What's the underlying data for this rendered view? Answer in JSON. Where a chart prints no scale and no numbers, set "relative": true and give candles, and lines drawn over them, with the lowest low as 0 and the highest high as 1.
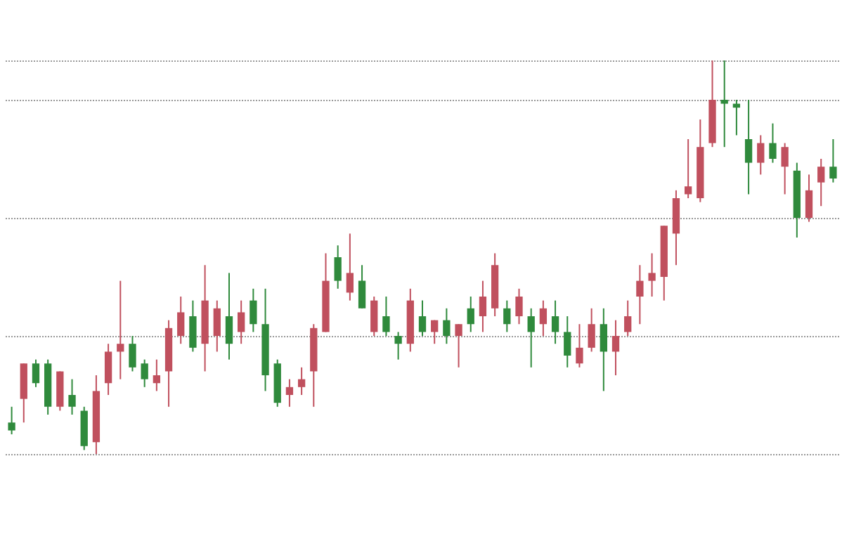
{
  "chart_data": {
    "type": "candlestick",
    "relative": true,
    "grid": "y",
    "categories": [
      null,
      null,
      null,
      null,
      null,
      null,
      null,
      null,
      null,
      null,
      null,
      null,
      null,
      null,
      null,
      null,
      null,
      null,
      null,
      null,
      null,
      null,
      null,
      null,
      null,
      null,
      null,
      null,
      null,
      null,
      null,
      null,
      null,
      null,
      null,
      null,
      null,
      null,
      null,
      null,
      null,
      null,
      null,
      null,
      null,
      null,
      null,
      null,
      null,
      null,
      null,
      null,
      null,
      null,
      null,
      null,
      null,
      null,
      null,
      null,
      null,
      null,
      null,
      null,
      null,
      null,
      null,
      null,
      null
    ],
    "ohlc": [
      [
        0.08,
        0.12,
        0.05,
        0.06
      ],
      [
        0.14,
        0.23,
        0.08,
        0.23
      ],
      [
        0.23,
        0.24,
        0.17,
        0.18
      ],
      [
        0.23,
        0.24,
        0.1,
        0.12
      ],
      [
        0.12,
        0.21,
        0.11,
        0.21
      ],
      [
        0.15,
        0.19,
        0.1,
        0.12
      ],
      [
        0.11,
        0.12,
        0.01,
        0.02
      ],
      [
        0.03,
        0.2,
        0,
        0.16
      ],
      [
        0.18,
        0.28,
        0.15,
        0.26
      ],
      [
        0.26,
        0.44,
        0.19,
        0.28
      ],
      [
        0.28,
        0.3,
        0.21,
        0.22
      ],
      [
        0.23,
        0.24,
        0.17,
        0.19
      ],
      [
        0.18,
        0.24,
        0.16,
        0.2
      ],
      [
        0.21,
        0.34,
        0.12,
        0.32
      ],
      [
        0.3,
        0.4,
        0.28,
        0.36
      ],
      [
        0.35,
        0.39,
        0.26,
        0.27
      ],
      [
        0.28,
        0.48,
        0.21,
        0.39
      ],
      [
        0.3,
        0.39,
        0.26,
        0.37
      ],
      [
        0.35,
        0.46,
        0.24,
        0.28
      ],
      [
        0.31,
        0.39,
        0.28,
        0.36
      ],
      [
        0.39,
        0.42,
        0.31,
        0.33
      ],
      [
        0.33,
        0.42,
        0.16,
        0.2
      ],
      [
        0.23,
        0.24,
        0.12,
        0.13
      ],
      [
        0.15,
        0.19,
        0.12,
        0.17
      ],
      [
        0.17,
        0.22,
        0.15,
        0.19
      ],
      [
        0.21,
        0.33,
        0.12,
        0.32
      ],
      [
        0.31,
        0.51,
        0.31,
        0.44
      ],
      [
        0.5,
        0.53,
        0.42,
        0.44
      ],
      [
        0.41,
        0.56,
        0.39,
        0.46
      ],
      [
        0.44,
        0.48,
        0.37,
        0.37
      ],
      [
        0.31,
        0.4,
        0.3,
        0.39
      ],
      [
        0.35,
        0.4,
        0.3,
        0.31
      ],
      [
        0.3,
        0.31,
        0.24,
        0.28
      ],
      [
        0.28,
        0.42,
        0.26,
        0.39
      ],
      [
        0.35,
        0.39,
        0.3,
        0.31
      ],
      [
        0.31,
        0.34,
        0.28,
        0.34
      ],
      [
        0.34,
        0.37,
        0.28,
        0.3
      ],
      [
        0.3,
        0.33,
        0.22,
        0.33
      ],
      [
        0.37,
        0.4,
        0.31,
        0.33
      ],
      [
        0.35,
        0.44,
        0.31,
        0.4
      ],
      [
        0.37,
        0.51,
        0.35,
        0.48
      ],
      [
        0.37,
        0.39,
        0.31,
        0.33
      ],
      [
        0.35,
        0.42,
        0.33,
        0.4
      ],
      [
        0.35,
        0.37,
        0.22,
        0.31
      ],
      [
        0.33,
        0.39,
        0.3,
        0.37
      ],
      [
        0.35,
        0.39,
        0.28,
        0.31
      ],
      [
        0.31,
        0.35,
        0.22,
        0.25
      ],
      [
        0.23,
        0.33,
        0.22,
        0.27
      ],
      [
        0.27,
        0.37,
        0.26,
        0.33
      ],
      [
        0.33,
        0.37,
        0.16,
        0.26
      ],
      [
        0.26,
        0.34,
        0.2,
        0.3
      ],
      [
        0.31,
        0.39,
        0.3,
        0.35
      ],
      [
        0.4,
        0.48,
        0.33,
        0.44
      ],
      [
        0.44,
        0.51,
        0.4,
        0.46
      ],
      [
        0.45,
        0.58,
        0.39,
        0.58
      ],
      [
        0.56,
        0.67,
        0.48,
        0.65
      ],
      [
        0.66,
        0.8,
        0.65,
        0.68
      ],
      [
        0.65,
        0.85,
        0.64,
        0.78
      ],
      [
        0.79,
        1,
        0.78,
        0.9
      ],
      [
        0.9,
        1,
        0.78,
        0.89
      ],
      [
        0.89,
        0.9,
        0.81,
        0.88
      ],
      [
        0.8,
        0.9,
        0.66,
        0.74
      ],
      [
        0.74,
        0.81,
        0.71,
        0.79
      ],
      [
        0.79,
        0.84,
        0.74,
        0.75
      ],
      [
        0.73,
        0.79,
        0.66,
        0.78
      ],
      [
        0.72,
        0.74,
        0.55,
        0.6
      ],
      [
        0.6,
        0.71,
        0.59,
        0.67
      ],
      [
        0.69,
        0.75,
        0.63,
        0.73
      ],
      [
        0.73,
        0.8,
        0.69,
        0.7
      ]
    ]
  }
}
